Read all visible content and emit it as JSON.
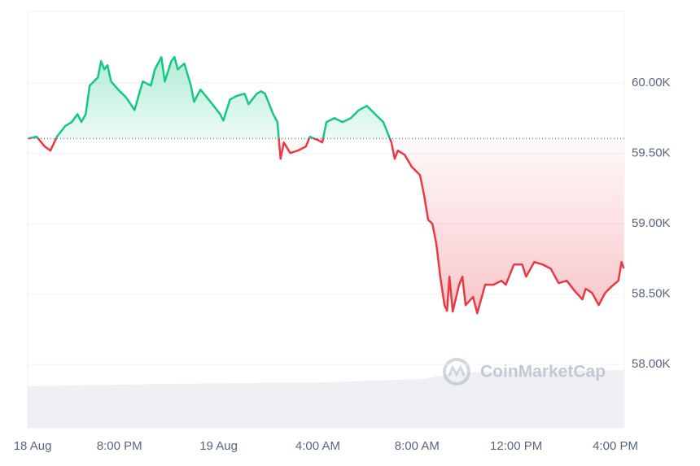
{
  "chart_data": {
    "type": "line",
    "x": [
      16.33,
      16.66,
      16.99,
      17.22,
      17.48,
      17.81,
      18.08,
      18.31,
      18.47,
      18.64,
      18.8,
      19.13,
      19.26,
      19.39,
      19.52,
      19.66,
      19.95,
      20.28,
      20.61,
      20.94,
      21.27,
      21.43,
      21.69,
      21.83,
      22.09,
      22.22,
      22.35,
      22.62,
      22.88,
      23.01,
      23.27,
      23.54,
      23.8,
      24.06,
      24.19,
      24.46,
      24.72,
      25.05,
      25.21,
      25.54,
      25.71,
      25.87,
      26.2,
      26.37,
      26.5,
      26.63,
      26.89,
      27.19,
      27.52,
      27.68,
      28.01,
      28.18,
      28.35,
      28.67,
      29.0,
      29.33,
      29.66,
      29.98,
      30.31,
      30.64,
      30.97,
      31.1,
      31.23,
      31.5,
      31.79,
      32.12,
      32.29,
      32.45,
      32.62,
      32.78,
      32.94,
      33.11,
      33.21,
      33.31,
      33.44,
      33.7,
      33.83,
      33.96,
      34.26,
      34.43,
      34.75,
      35.08,
      35.41,
      35.58,
      35.91,
      36.24,
      36.4,
      36.73,
      37.06,
      37.39,
      37.71,
      38.04,
      38.37,
      38.67,
      38.8,
      39.06,
      39.33,
      39.59,
      39.85,
      40.12,
      40.25,
      40.34
    ],
    "values": [
      59607,
      59619,
      59549,
      59520,
      59619,
      59694,
      59723,
      59780,
      59723,
      59780,
      59983,
      60040,
      60156,
      60098,
      60127,
      60012,
      59954,
      59896,
      59809,
      60012,
      59983,
      60098,
      60185,
      60012,
      60156,
      60185,
      60098,
      60139,
      59983,
      59867,
      59954,
      59896,
      59838,
      59780,
      59734,
      59884,
      59908,
      59925,
      59850,
      59925,
      59942,
      59925,
      59780,
      59723,
      59462,
      59578,
      59503,
      59520,
      59549,
      59619,
      59595,
      59578,
      59723,
      59751,
      59723,
      59751,
      59809,
      59838,
      59780,
      59723,
      59578,
      59462,
      59520,
      59491,
      59405,
      59347,
      59202,
      59029,
      59000,
      58856,
      58624,
      58422,
      58382,
      58624,
      58376,
      58567,
      58624,
      58422,
      58480,
      58364,
      58567,
      58567,
      58595,
      58567,
      58711,
      58711,
      58624,
      58728,
      58711,
      58682,
      58578,
      58595,
      58520,
      58463,
      58538,
      58509,
      58422,
      58509,
      58555,
      58595,
      58728,
      58682
    ],
    "baseline": 59607,
    "up_color": "#16c784",
    "down_color": "#ea3943",
    "xlim": [
      16.3,
      40.36
    ],
    "xticks": [
      {
        "value": 16.5,
        "label": "18 Aug"
      },
      {
        "value": 20,
        "label": "8:00 PM"
      },
      {
        "value": 24,
        "label": "19 Aug"
      },
      {
        "value": 28,
        "label": "4:00 AM"
      },
      {
        "value": 32,
        "label": "8:00 AM"
      },
      {
        "value": 36,
        "label": "12:00 PM"
      },
      {
        "value": 40,
        "label": "4:00 PM"
      }
    ],
    "ylim": [
      57550,
      60510
    ],
    "yticks": [
      {
        "value": 58000,
        "label": "58.00K"
      },
      {
        "value": 58500,
        "label": "58.50K"
      },
      {
        "value": 59000,
        "label": "59.00K"
      },
      {
        "value": 59500,
        "label": "59.50K"
      },
      {
        "value": 60000,
        "label": "60.00K"
      }
    ],
    "grid": true,
    "watermark": "CoinMarketCap"
  }
}
